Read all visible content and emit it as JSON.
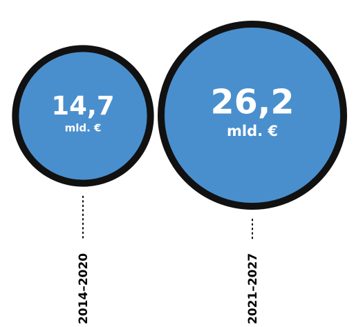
{
  "chart_data": {
    "type": "bubble",
    "title": "",
    "xlabel": "",
    "ylabel": "",
    "unit": "mld. €",
    "categories": [
      "2014–2020",
      "2021–2027"
    ],
    "values": [
      14.7,
      26.2
    ],
    "value_labels": [
      "14,7",
      "26,2"
    ],
    "unit_labels": [
      "mld. €",
      "mld. €"
    ],
    "colors": {
      "fill": "#4A8FCD",
      "stroke": "#111111",
      "label": "#ffffff",
      "period_label": "#000000"
    }
  }
}
